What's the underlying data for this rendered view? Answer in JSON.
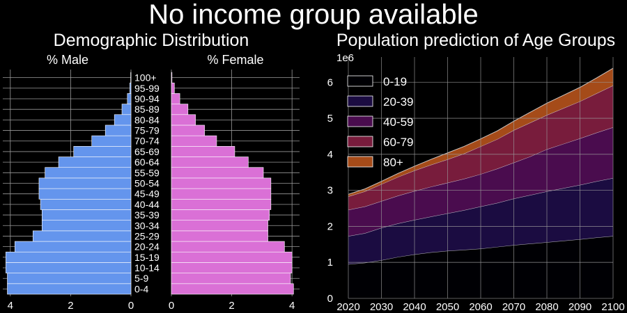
{
  "figure": {
    "title": "No income group available",
    "pyramid_title": "Demographic Distribution",
    "area_title": "Population prediction of Age Groups"
  },
  "colors": {
    "background": "#000000",
    "male": "#6495ED",
    "female": "#DA70D6",
    "grid": "#9a9a9a",
    "age_0_19": "#000004",
    "age_20_39": "#1b0c41",
    "age_40_59": "#4a0c4e",
    "age_60_79": "#781c3c",
    "age_80_plus": "#a54b19"
  },
  "chart_data": [
    {
      "type": "bar",
      "orientation": "horizontal",
      "title": "% Male",
      "categories": [
        "0-4",
        "5-9",
        "10-14",
        "15-19",
        "20-24",
        "25-29",
        "30-34",
        "35-39",
        "40-44",
        "45-49",
        "50-54",
        "55-59",
        "60-64",
        "65-69",
        "70-74",
        "75-79",
        "80-84",
        "85-89",
        "90-94",
        "95-99",
        "100+"
      ],
      "values": [
        4.1,
        4.1,
        4.15,
        4.15,
        3.85,
        3.25,
        2.95,
        2.95,
        3.0,
        3.05,
        3.05,
        2.85,
        2.4,
        1.9,
        1.3,
        0.85,
        0.55,
        0.3,
        0.12,
        0.04,
        0.01
      ],
      "xlim": [
        4.25,
        0
      ],
      "xticks": [
        4,
        2,
        0
      ],
      "x_reversed": true,
      "grid": true
    },
    {
      "type": "bar",
      "orientation": "horizontal",
      "title": "% Female",
      "categories": [
        "0-4",
        "5-9",
        "10-14",
        "15-19",
        "20-24",
        "25-29",
        "30-34",
        "35-39",
        "40-44",
        "45-49",
        "50-54",
        "55-59",
        "60-64",
        "65-69",
        "70-74",
        "75-79",
        "80-84",
        "85-89",
        "90-94",
        "95-99",
        "100+"
      ],
      "values": [
        4.05,
        3.95,
        4.0,
        4.0,
        3.75,
        3.2,
        3.2,
        3.25,
        3.3,
        3.3,
        3.3,
        3.05,
        2.55,
        2.1,
        1.5,
        1.1,
        0.8,
        0.55,
        0.28,
        0.1,
        0.02
      ],
      "xlim": [
        0,
        4.25
      ],
      "xticks": [
        0,
        2,
        4
      ],
      "grid": true
    },
    {
      "type": "area",
      "stacked": true,
      "title": "Population prediction of Age Groups",
      "x": [
        2020,
        2025,
        2030,
        2035,
        2040,
        2045,
        2050,
        2055,
        2060,
        2065,
        2070,
        2075,
        2080,
        2085,
        2090,
        2095,
        2100
      ],
      "xlim": [
        2020,
        2100
      ],
      "xticks": [
        2020,
        2030,
        2040,
        2050,
        2060,
        2070,
        2080,
        2090,
        2100
      ],
      "ylim": [
        0,
        6700000
      ],
      "yticks": [
        0,
        1000000,
        2000000,
        3000000,
        4000000,
        5000000,
        6000000
      ],
      "yticklabels": [
        "0",
        "1",
        "2",
        "3",
        "4",
        "5",
        "6"
      ],
      "y_offset_label": "1e6",
      "legend_position": "upper-left",
      "grid": true,
      "series": [
        {
          "name": "0-19",
          "color": "#000004",
          "values": [
            950000,
            990000,
            1060000,
            1150000,
            1220000,
            1280000,
            1320000,
            1350000,
            1380000,
            1430000,
            1480000,
            1520000,
            1560000,
            1600000,
            1640000,
            1690000,
            1730000
          ]
        },
        {
          "name": "20-39",
          "color": "#1b0c41",
          "values": [
            780000,
            820000,
            900000,
            930000,
            960000,
            990000,
            1040000,
            1100000,
            1170000,
            1220000,
            1290000,
            1350000,
            1410000,
            1460000,
            1510000,
            1560000,
            1610000
          ]
        },
        {
          "name": "40-59",
          "color": "#4a0c4e",
          "values": [
            730000,
            740000,
            740000,
            770000,
            800000,
            830000,
            850000,
            870000,
            900000,
            950000,
            1000000,
            1070000,
            1170000,
            1230000,
            1290000,
            1350000,
            1410000
          ]
        },
        {
          "name": "60-79",
          "color": "#781c3c",
          "values": [
            370000,
            420000,
            470000,
            520000,
            570000,
            610000,
            650000,
            700000,
            770000,
            820000,
            900000,
            940000,
            950000,
            990000,
            1030000,
            1090000,
            1160000
          ]
        },
        {
          "name": "80+",
          "color": "#a54b19",
          "values": [
            60000,
            70000,
            80000,
            100000,
            120000,
            150000,
            180000,
            200000,
            210000,
            230000,
            250000,
            290000,
            330000,
            360000,
            390000,
            430000,
            480000
          ]
        }
      ]
    }
  ]
}
